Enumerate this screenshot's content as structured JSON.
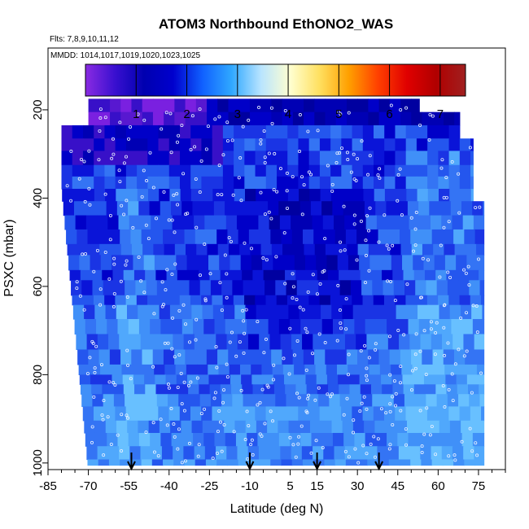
{
  "chart_data": {
    "type": "heatmap",
    "title": "ATOM3 Northbound EthONO2_WAS",
    "flights_label": "Flts: 7,8,9,10,11,12",
    "dates_label": "MMDD: 1014,1017,1019,1020,1023,1025",
    "xlabel": "Latitude (deg N)",
    "ylabel": "PSXC (mbar)",
    "xlim": [
      -85,
      85
    ],
    "ylim": [
      1015,
      60
    ],
    "y_reversed": true,
    "x_ticks": [
      "-85",
      "-70",
      "-55",
      "-40",
      "-25",
      "-10",
      "5",
      "15",
      "30",
      "45",
      "60",
      "75"
    ],
    "x_tick_values": [
      -85,
      -70,
      -55,
      -40,
      -25,
      -10,
      5,
      15,
      30,
      45,
      60,
      75
    ],
    "y_ticks": [
      "200",
      "400",
      "600",
      "800",
      "1000"
    ],
    "y_tick_values": [
      200,
      400,
      600,
      800,
      1000
    ],
    "colorbar": {
      "ticks": [
        "1",
        "2",
        "3",
        "4",
        "5",
        "6",
        "7"
      ],
      "tick_values": [
        1,
        2,
        3,
        4,
        5,
        6,
        7
      ],
      "range": [
        0,
        7.5
      ],
      "colors": [
        "#8a2be2",
        "#3a10d0",
        "#0000b0",
        "#0000cd",
        "#1060ff",
        "#30a8ff",
        "#b8e4ff",
        "#ffffd0",
        "#ffe060",
        "#ffa000",
        "#ff4000",
        "#e00000",
        "#b00000",
        "#a02020"
      ]
    },
    "markers": {
      "type": "down-arrow",
      "latitudes": [
        -54,
        -10,
        15,
        38
      ]
    },
    "grid": false,
    "legend": "colorbar-top"
  }
}
